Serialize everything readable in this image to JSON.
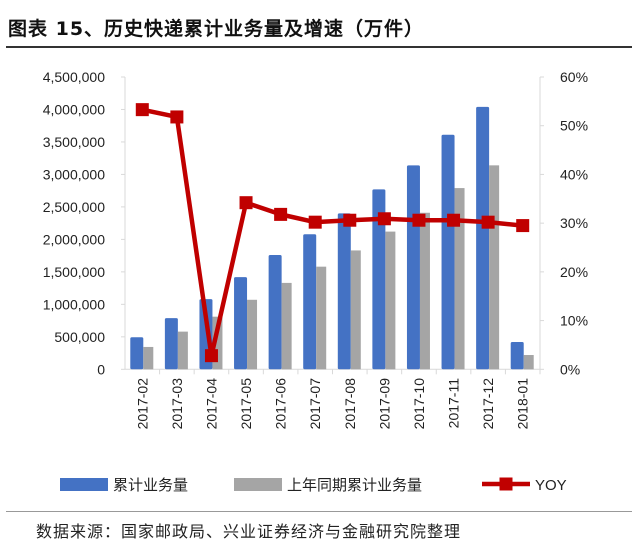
{
  "title": "图表 15、历史快递累计业务量及增速（万件）",
  "source": "数据来源：国家邮政局、兴业证券经济与金融研究院整理",
  "chart_data": {
    "type": "bar",
    "categories": [
      "2017-02",
      "2017-03",
      "2017-04",
      "2017-05",
      "2017-06",
      "2017-07",
      "2017-08",
      "2017-09",
      "2017-10",
      "2017-11",
      "2017-12",
      "2018-01"
    ],
    "series": [
      {
        "name": "累计业务量",
        "type": "bar",
        "axis": "left",
        "color": "#4472C4",
        "values": [
          494000,
          787000,
          1080000,
          1420000,
          1760000,
          2080000,
          2400000,
          2770000,
          3140000,
          3610000,
          4040000,
          420000
        ]
      },
      {
        "name": "上年同期累计业务量",
        "type": "bar",
        "axis": "left",
        "color": "#A5A5A5",
        "values": [
          344000,
          580000,
          810000,
          1070000,
          1330000,
          1580000,
          1830000,
          2120000,
          2410000,
          2790000,
          3140000,
          220000
        ]
      },
      {
        "name": "YOY",
        "type": "line",
        "axis": "right",
        "color": "#C00000",
        "values": [
          53.3,
          51.8,
          2.8,
          34.2,
          31.8,
          30.2,
          30.6,
          30.9,
          30.6,
          30.6,
          30.2,
          29.5
        ]
      }
    ],
    "y_left": {
      "lim": [
        0,
        4500000
      ],
      "ticks": [
        "0",
        "500,000",
        "1,000,000",
        "1,500,000",
        "2,000,000",
        "2,500,000",
        "3,000,000",
        "3,500,000",
        "4,000,000",
        "4,500,000"
      ]
    },
    "y_right": {
      "lim": [
        0,
        60
      ],
      "ticks": [
        "0%",
        "10%",
        "20%",
        "30%",
        "40%",
        "50%",
        "60%"
      ]
    },
    "grid": false,
    "legend": "bottom"
  }
}
